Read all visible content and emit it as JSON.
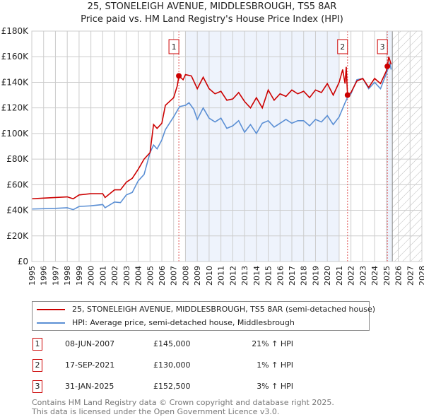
{
  "title": "25, STONELEIGH AVENUE, MIDDLESBROUGH, TS5 8AR",
  "subtitle": "Price paid vs. HM Land Registry's House Price Index (HPI)",
  "chart_data": {
    "type": "line",
    "title": "25, STONELEIGH AVENUE, MIDDLESBROUGH, TS5 8AR",
    "subtitle": "Price paid vs. HM Land Registry's House Price Index (HPI)",
    "xlim": [
      1995,
      2028
    ],
    "ylim": [
      0,
      180000
    ],
    "xticks": [
      1995,
      1996,
      1997,
      1998,
      1999,
      2000,
      2001,
      2002,
      2003,
      2004,
      2005,
      2006,
      2007,
      2008,
      2009,
      2010,
      2011,
      2012,
      2013,
      2014,
      2015,
      2016,
      2017,
      2018,
      2019,
      2020,
      2021,
      2022,
      2023,
      2024,
      2025,
      2026,
      2027,
      2028
    ],
    "yticks": [
      {
        "v": 0,
        "label": "£0"
      },
      {
        "v": 20000,
        "label": "£20K"
      },
      {
        "v": 40000,
        "label": "£40K"
      },
      {
        "v": 60000,
        "label": "£60K"
      },
      {
        "v": 80000,
        "label": "£80K"
      },
      {
        "v": 100000,
        "label": "£100K"
      },
      {
        "v": 120000,
        "label": "£120K"
      },
      {
        "v": 140000,
        "label": "£140K"
      },
      {
        "v": 160000,
        "label": "£160K"
      },
      {
        "v": 180000,
        "label": "£180K"
      }
    ],
    "grid": true,
    "shaded_ranges": [
      [
        2008,
        2021
      ],
      [
        2025,
        2025.5
      ]
    ],
    "forecast_hatch_from": 2025.5,
    "series": [
      {
        "name": "25, STONELEIGH AVENUE, MIDDLESBROUGH, TS5 8AR (semi-detached house)",
        "color": "#cc0000",
        "points": [
          [
            1995,
            49000
          ],
          [
            1996,
            49500
          ],
          [
            1997,
            50000
          ],
          [
            1998,
            50500
          ],
          [
            1998.5,
            49000
          ],
          [
            1999,
            52000
          ],
          [
            2000,
            53000
          ],
          [
            2001,
            53000
          ],
          [
            2001.2,
            50000
          ],
          [
            2002,
            56000
          ],
          [
            2002.5,
            56000
          ],
          [
            2003,
            62000
          ],
          [
            2003.5,
            65000
          ],
          [
            2004,
            72000
          ],
          [
            2004.5,
            80000
          ],
          [
            2005,
            85000
          ],
          [
            2005.3,
            107000
          ],
          [
            2005.6,
            104000
          ],
          [
            2006,
            108000
          ],
          [
            2006.3,
            122000
          ],
          [
            2007,
            128000
          ],
          [
            2007.3,
            137000
          ],
          [
            2007.45,
            145000
          ],
          [
            2007.8,
            142000
          ],
          [
            2008,
            146000
          ],
          [
            2008.5,
            145000
          ],
          [
            2009,
            135000
          ],
          [
            2009.5,
            144000
          ],
          [
            2010,
            135000
          ],
          [
            2010.5,
            131000
          ],
          [
            2011,
            133000
          ],
          [
            2011.5,
            126000
          ],
          [
            2012,
            127000
          ],
          [
            2012.5,
            132000
          ],
          [
            2013,
            125000
          ],
          [
            2013.5,
            120000
          ],
          [
            2014,
            128000
          ],
          [
            2014.5,
            120000
          ],
          [
            2015,
            134000
          ],
          [
            2015.5,
            126000
          ],
          [
            2016,
            131000
          ],
          [
            2016.5,
            129000
          ],
          [
            2017,
            134000
          ],
          [
            2017.5,
            131000
          ],
          [
            2018,
            133000
          ],
          [
            2018.5,
            128000
          ],
          [
            2019,
            134000
          ],
          [
            2019.5,
            132000
          ],
          [
            2020,
            139000
          ],
          [
            2020.5,
            130000
          ],
          [
            2021,
            140000
          ],
          [
            2021.3,
            150000
          ],
          [
            2021.5,
            139000
          ],
          [
            2021.6,
            152000
          ],
          [
            2021.71,
            130000
          ],
          [
            2022,
            132000
          ],
          [
            2022.5,
            141000
          ],
          [
            2023,
            143000
          ],
          [
            2023.5,
            136000
          ],
          [
            2024,
            143000
          ],
          [
            2024.5,
            139000
          ],
          [
            2025,
            149000
          ],
          [
            2025.08,
            152500
          ],
          [
            2025.2,
            160000
          ],
          [
            2025.4,
            154000
          ]
        ]
      },
      {
        "name": "HPI: Average price, semi-detached house, Middlesbrough",
        "color": "#5b8fd4",
        "points": [
          [
            1995,
            41000
          ],
          [
            1997,
            41500
          ],
          [
            1998,
            42000
          ],
          [
            1998.5,
            40500
          ],
          [
            1999,
            43000
          ],
          [
            2000,
            43500
          ],
          [
            2001,
            44500
          ],
          [
            2001.2,
            42000
          ],
          [
            2002,
            46500
          ],
          [
            2002.5,
            46000
          ],
          [
            2003,
            52000
          ],
          [
            2003.5,
            54000
          ],
          [
            2004,
            63000
          ],
          [
            2004.5,
            68000
          ],
          [
            2005,
            85000
          ],
          [
            2005.3,
            91000
          ],
          [
            2005.6,
            88000
          ],
          [
            2006,
            95000
          ],
          [
            2006.3,
            103000
          ],
          [
            2007,
            113000
          ],
          [
            2007.5,
            121000
          ],
          [
            2008,
            122000
          ],
          [
            2008.3,
            124000
          ],
          [
            2008.7,
            119000
          ],
          [
            2009,
            111000
          ],
          [
            2009.5,
            120000
          ],
          [
            2010,
            112000
          ],
          [
            2010.5,
            109000
          ],
          [
            2011,
            112000
          ],
          [
            2011.5,
            104000
          ],
          [
            2012,
            106000
          ],
          [
            2012.5,
            110000
          ],
          [
            2013,
            101000
          ],
          [
            2013.5,
            107000
          ],
          [
            2014,
            100000
          ],
          [
            2014.5,
            108000
          ],
          [
            2015,
            110000
          ],
          [
            2015.5,
            105000
          ],
          [
            2016,
            108000
          ],
          [
            2016.5,
            111000
          ],
          [
            2017,
            108000
          ],
          [
            2017.5,
            110000
          ],
          [
            2018,
            110000
          ],
          [
            2018.5,
            106000
          ],
          [
            2019,
            111000
          ],
          [
            2019.5,
            109000
          ],
          [
            2020,
            114000
          ],
          [
            2020.5,
            107000
          ],
          [
            2021,
            113000
          ],
          [
            2021.5,
            124000
          ],
          [
            2021.7,
            128000
          ],
          [
            2022,
            131000
          ],
          [
            2022.5,
            142000
          ],
          [
            2023,
            143000
          ],
          [
            2023.5,
            135000
          ],
          [
            2024,
            140000
          ],
          [
            2024.5,
            135000
          ],
          [
            2025,
            147000
          ],
          [
            2025.3,
            155000
          ],
          [
            2025.4,
            150000
          ]
        ]
      }
    ],
    "sales": [
      {
        "label": "1",
        "x": 2007.44,
        "y": 145000,
        "date": "08-JUN-2007",
        "price": "£145,000",
        "hpi": "21% ↑ HPI"
      },
      {
        "label": "2",
        "x": 2021.71,
        "y": 130000,
        "date": "17-SEP-2021",
        "price": "£130,000",
        "hpi": "1% ↑ HPI"
      },
      {
        "label": "3",
        "x": 2025.08,
        "y": 152500,
        "date": "31-JAN-2025",
        "price": "£152,500",
        "hpi": "3% ↑ HPI"
      }
    ]
  },
  "legend": {
    "property": "25, STONELEIGH AVENUE, MIDDLESBROUGH, TS5 8AR (semi-detached house)",
    "hpi": "HPI: Average price, semi-detached house, Middlesbrough"
  },
  "footer": {
    "line1": "Contains HM Land Registry data © Crown copyright and database right 2025.",
    "line2": "This data is licensed under the Open Government Licence v3.0."
  }
}
